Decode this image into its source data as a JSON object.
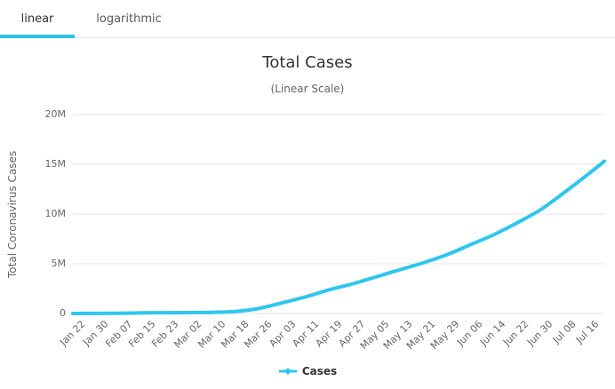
{
  "tabs": [
    {
      "label": "linear",
      "active": true
    },
    {
      "label": "logarithmic",
      "active": false
    }
  ],
  "colors": {
    "accent": "#29c2e9",
    "line": "#2ec6f0",
    "grid": "#e6e6e6",
    "axis_text": "#666666",
    "title_text": "#333333"
  },
  "chart_data": {
    "type": "line",
    "title": "Total Cases",
    "subtitle": "(Linear Scale)",
    "ylabel": "Total Coronavirus Cases",
    "xlabel": "",
    "legend": [
      "Cases"
    ],
    "legend_position": "bottom",
    "grid": "horizontal",
    "units": "millions of cases",
    "ylim": [
      0,
      20
    ],
    "ytick_values": [
      0,
      5,
      10,
      15,
      20
    ],
    "ytick_labels": [
      "0",
      "5M",
      "10M",
      "15M",
      "20M"
    ],
    "categories": [
      "Jan 22",
      "Jan 30",
      "Feb 07",
      "Feb 15",
      "Feb 23",
      "Mar 02",
      "Mar 10",
      "Mar 18",
      "Mar 26",
      "Apr 03",
      "Apr 11",
      "Apr 19",
      "Apr 27",
      "May 05",
      "May 13",
      "May 21",
      "May 29",
      "Jun 06",
      "Jun 14",
      "Jun 22",
      "Jun 30",
      "Jul 08",
      "Jul 16"
    ],
    "category_day_spacing": 8,
    "x_range_days": [
      0,
      182
    ],
    "series": [
      {
        "name": "Cases",
        "color": "#2ec6f0",
        "points_day_valueM": [
          [
            0,
            0.0006
          ],
          [
            8,
            0.01
          ],
          [
            16,
            0.03
          ],
          [
            24,
            0.07
          ],
          [
            32,
            0.08
          ],
          [
            40,
            0.09
          ],
          [
            48,
            0.12
          ],
          [
            56,
            0.21
          ],
          [
            64,
            0.53
          ],
          [
            72,
            1.1
          ],
          [
            80,
            1.7
          ],
          [
            88,
            2.4
          ],
          [
            96,
            3.0
          ],
          [
            104,
            3.7
          ],
          [
            112,
            4.4
          ],
          [
            120,
            5.1
          ],
          [
            128,
            5.9
          ],
          [
            136,
            6.9
          ],
          [
            144,
            7.9
          ],
          [
            152,
            9.1
          ],
          [
            160,
            10.4
          ],
          [
            168,
            12.1
          ],
          [
            176,
            13.9
          ],
          [
            182,
            15.3
          ]
        ]
      }
    ]
  }
}
